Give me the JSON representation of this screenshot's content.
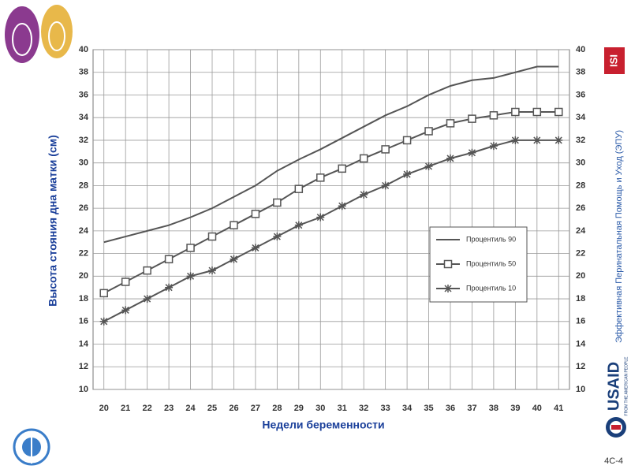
{
  "chart_data": {
    "type": "line",
    "xlabel": "Недели беременности",
    "ylabel": "Высота стояния дна матки (см)",
    "x": [
      20,
      21,
      22,
      23,
      24,
      25,
      26,
      27,
      28,
      29,
      30,
      31,
      32,
      33,
      34,
      35,
      36,
      37,
      38,
      39,
      40,
      41
    ],
    "xlim": [
      19.5,
      41.5
    ],
    "xticks": [
      20,
      21,
      22,
      23,
      24,
      25,
      26,
      27,
      28,
      29,
      30,
      31,
      32,
      33,
      34,
      35,
      36,
      37,
      38,
      39,
      40,
      41
    ],
    "ylim": [
      10,
      40
    ],
    "yticks": [
      10,
      12,
      14,
      16,
      18,
      20,
      22,
      24,
      26,
      28,
      30,
      32,
      34,
      36,
      38,
      40
    ],
    "grid": true,
    "legend": "right",
    "series": [
      {
        "name": "Процентиль 90",
        "color": "#555555",
        "marker": "none",
        "values": [
          23,
          23.5,
          24,
          24.5,
          25.2,
          26,
          27,
          28,
          29.3,
          30.3,
          31.2,
          32.2,
          33.2,
          34.2,
          35,
          36,
          36.8,
          37.3,
          37.5,
          38,
          38.5,
          38.5
        ]
      },
      {
        "name": "Процентиль 50",
        "color": "#555555",
        "marker": "square",
        "values": [
          18.5,
          19.5,
          20.5,
          21.5,
          22.5,
          23.5,
          24.5,
          25.5,
          26.5,
          27.7,
          28.7,
          29.5,
          30.4,
          31.2,
          32,
          32.8,
          33.5,
          33.9,
          34.2,
          34.5,
          34.5,
          34.5
        ]
      },
      {
        "name": "Процентиль 10",
        "color": "#555555",
        "marker": "star",
        "values": [
          16,
          17,
          18,
          19,
          20,
          20.5,
          21.5,
          22.5,
          23.5,
          24.5,
          25.2,
          26.2,
          27.2,
          28,
          29,
          29.7,
          30.4,
          30.9,
          31.5,
          32,
          32,
          32
        ]
      }
    ]
  },
  "side_text": "Эффективная Перинатальная Помощь и Уход (ЭПУ)",
  "page_number": "4C-4",
  "logos": {
    "isi": "ISI",
    "usaid": "USAID",
    "usaid_tagline": "FROM THE AMERICAN PEOPLE"
  }
}
